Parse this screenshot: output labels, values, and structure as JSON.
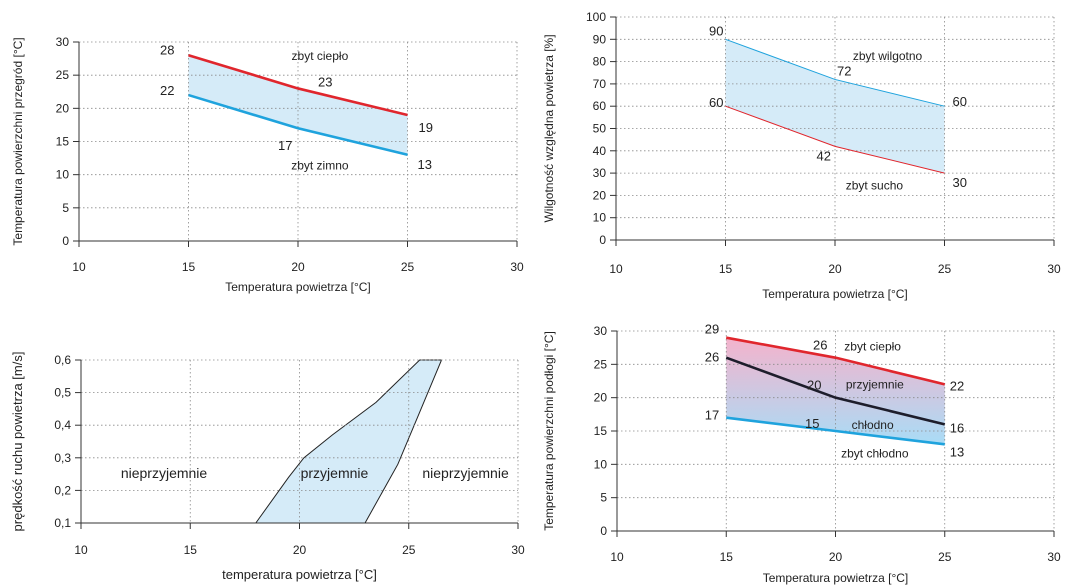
{
  "chart_data": [
    {
      "id": "surface",
      "type": "line",
      "xlabel": "Temperatura powietrza [°C]",
      "ylabel": "Temperatura powierzchni przegród [°C]",
      "xlim": [
        10,
        30
      ],
      "ylim": [
        0,
        30
      ],
      "xticks": [
        "10",
        "15",
        "20",
        "25",
        "30"
      ],
      "yticks": [
        "0",
        "5",
        "10",
        "15",
        "20",
        "25",
        "30"
      ],
      "grid": true,
      "series": [
        {
          "color": "#e0262d",
          "x": [
            15,
            20,
            25
          ],
          "y": [
            28,
            23,
            19
          ],
          "labels": [
            "28",
            "23",
            "19"
          ]
        },
        {
          "color": "#1fa3dd",
          "x": [
            15,
            20,
            25
          ],
          "y": [
            22,
            17,
            13
          ],
          "labels": [
            "22",
            "17",
            "13"
          ]
        }
      ],
      "fill": {
        "color": "#d5ebf8"
      },
      "annotations": [
        {
          "text": "zbyt ciepło",
          "x": 21.0,
          "y": 27.9
        },
        {
          "text": "zbyt zimno",
          "x": 21.0,
          "y": 11.4
        }
      ]
    },
    {
      "id": "humidity",
      "type": "line",
      "xlabel": "Temperatura powietrza [°C]",
      "ylabel": "Wilgotność względna powietrza [%]",
      "xlim": [
        10,
        30
      ],
      "ylim": [
        0,
        100
      ],
      "xticks": [
        "10",
        "15",
        "20",
        "25",
        "30"
      ],
      "yticks": [
        "0",
        "10",
        "20",
        "30",
        "40",
        "50",
        "60",
        "70",
        "80",
        "90",
        "100"
      ],
      "grid": true,
      "series": [
        {
          "color": "#1fa3dd",
          "x": [
            15,
            20,
            25
          ],
          "y": [
            90,
            72,
            60
          ],
          "labels": [
            "90",
            "72",
            "60"
          ]
        },
        {
          "color": "#e0262d",
          "x": [
            15,
            20,
            25
          ],
          "y": [
            60,
            42,
            30
          ],
          "labels": [
            "60",
            "42",
            "30"
          ]
        }
      ],
      "fill": {
        "color": "#d5ebf8"
      },
      "annotations": [
        {
          "text": "zbyt wilgotno",
          "x": 22.4,
          "y": 82.5
        },
        {
          "text": "zbyt sucho",
          "x": 21.8,
          "y": 24.5
        }
      ]
    },
    {
      "id": "air-speed",
      "type": "area",
      "xlabel": "temperatura powietrza [°C]",
      "ylabel": "prędkość ruchu powietrza [m/s]",
      "xlim": [
        10,
        30
      ],
      "ylim": [
        0.1,
        0.6
      ],
      "xticks": [
        "10",
        "15",
        "20",
        "25",
        "30"
      ],
      "yticks": [
        "0,1",
        "0,2",
        "0,3",
        "0,4",
        "0,5",
        "0,6"
      ],
      "grid": true,
      "region": {
        "color": "#d5ebf8",
        "x": [
          18,
          19.5,
          20.2,
          21.5,
          23.5,
          25.5,
          26.5,
          25.5,
          24.5,
          23
        ],
        "y": [
          0.1,
          0.24,
          0.3,
          0.37,
          0.47,
          0.6,
          0.6,
          0.44,
          0.28,
          0.1
        ]
      },
      "annotations": [
        {
          "text": "nieprzyjemnie",
          "x": 13.8,
          "y": 0.25
        },
        {
          "text": "przyjemnie",
          "x": 21.6,
          "y": 0.25
        },
        {
          "text": "nieprzyjemnie",
          "x": 27.6,
          "y": 0.25
        }
      ]
    },
    {
      "id": "floor",
      "type": "line",
      "xlabel": "Temperatura powietrza [°C]",
      "ylabel": "Temperatura powierzchni podłogi [°C]",
      "xlim": [
        10,
        30
      ],
      "ylim": [
        0,
        30
      ],
      "xticks": [
        "10",
        "15",
        "20",
        "25",
        "30"
      ],
      "yticks": [
        "0",
        "5",
        "10",
        "15",
        "20",
        "25",
        "30"
      ],
      "grid": true,
      "series": [
        {
          "color": "#e0262d",
          "x": [
            15,
            20,
            25
          ],
          "y": [
            29,
            26,
            22
          ],
          "labels": [
            "29",
            "26",
            "22"
          ]
        },
        {
          "color": "#1d1d2b",
          "x": [
            15,
            20,
            25
          ],
          "y": [
            26,
            20,
            16
          ],
          "labels": [
            "26",
            "20",
            "16"
          ]
        },
        {
          "color": "#1fa3dd",
          "x": [
            15,
            20,
            25
          ],
          "y": [
            17,
            15,
            13
          ],
          "labels": [
            "17",
            "15",
            "13"
          ]
        }
      ],
      "fill": {
        "top_color": "#f4b3cc",
        "bottom_color": "#a9dcf6"
      },
      "annotations": [
        {
          "text": "zbyt ciepło",
          "x": 21.7,
          "y": 27.7
        },
        {
          "text": "przyjemnie",
          "x": 21.8,
          "y": 22.0
        },
        {
          "text": "chłodno",
          "x": 21.7,
          "y": 15.9
        },
        {
          "text": "zbyt chłodno",
          "x": 21.8,
          "y": 11.6
        }
      ]
    }
  ]
}
